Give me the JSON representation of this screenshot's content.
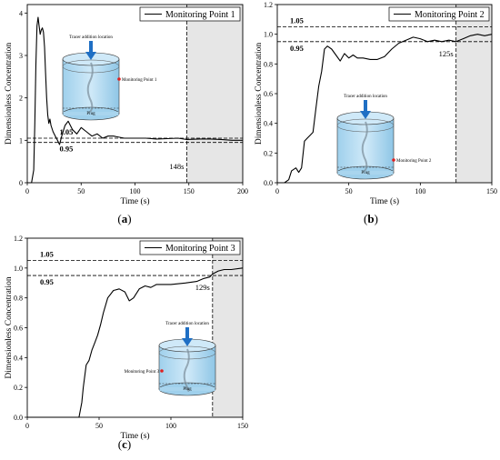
{
  "panels": [
    {
      "caption": "a",
      "chart_data": {
        "type": "line",
        "legend": "Monitoring Point 1",
        "legend_position": "top-right",
        "xlabel": "Time (s)",
        "ylabel": "Dimensionless Concentration",
        "xlim": [
          0,
          200
        ],
        "ylim": [
          0,
          4.2
        ],
        "xticks": [
          0,
          50,
          100,
          150,
          200
        ],
        "yticks": [
          0,
          1,
          2,
          3,
          4
        ],
        "upper_band": 1.05,
        "lower_band": 0.95,
        "upper_label": "1.05",
        "lower_label": "0.95",
        "mixing_time": 148,
        "mixing_label": "148s",
        "shaded_region": [
          148,
          200
        ],
        "x": [
          0,
          4,
          6,
          7,
          8,
          9,
          10,
          11,
          12,
          13,
          14,
          15,
          16,
          17,
          18,
          19,
          20,
          21,
          22,
          24,
          26,
          28,
          30,
          32,
          35,
          38,
          42,
          46,
          50,
          55,
          60,
          65,
          70,
          75,
          80,
          90,
          100,
          110,
          120,
          130,
          140,
          148,
          160,
          170,
          180,
          190,
          200
        ],
        "y": [
          0,
          0,
          0.3,
          1.4,
          2.8,
          3.7,
          3.9,
          3.7,
          3.5,
          3.6,
          3.65,
          3.55,
          3.2,
          2.6,
          2.0,
          1.6,
          1.4,
          1.5,
          1.35,
          1.2,
          1.1,
          1.0,
          0.9,
          1.1,
          1.35,
          1.45,
          1.25,
          1.15,
          1.3,
          1.2,
          1.1,
          1.15,
          1.05,
          1.1,
          1.1,
          1.05,
          1.05,
          1.05,
          1.03,
          1.04,
          1.05,
          1.02,
          1.03,
          1.03,
          1.02,
          1.0,
          1.0
        ]
      },
      "inset": {
        "title": "Tracer addition location",
        "point_label": "Monitoring Point 1",
        "bottom_label": "Plug"
      }
    },
    {
      "caption": "b",
      "chart_data": {
        "type": "line",
        "legend": "Monitoring Point 2",
        "legend_position": "top-right",
        "xlabel": "Time (s)",
        "ylabel": "Dimensionless Concentration",
        "xlim": [
          0,
          150
        ],
        "ylim": [
          0,
          1.2
        ],
        "xticks": [
          0,
          50,
          100,
          150
        ],
        "yticks": [
          0.0,
          0.2,
          0.4,
          0.6,
          0.8,
          1.0,
          1.2
        ],
        "upper_band": 1.05,
        "lower_band": 0.95,
        "upper_label": "1.05",
        "lower_label": "0.95",
        "mixing_time": 125,
        "mixing_label": "125s",
        "shaded_region": [
          125,
          150
        ],
        "x": [
          0,
          5,
          8,
          10,
          13,
          15,
          17,
          19,
          21,
          23,
          25,
          27,
          29,
          31,
          33,
          35,
          38,
          41,
          44,
          47,
          50,
          53,
          56,
          60,
          65,
          70,
          75,
          80,
          85,
          90,
          95,
          100,
          105,
          110,
          115,
          120,
          125,
          130,
          135,
          140,
          145,
          150
        ],
        "y": [
          0,
          0,
          0.02,
          0.08,
          0.1,
          0.07,
          0.1,
          0.28,
          0.3,
          0.32,
          0.34,
          0.5,
          0.65,
          0.75,
          0.9,
          0.92,
          0.9,
          0.86,
          0.82,
          0.87,
          0.84,
          0.86,
          0.84,
          0.84,
          0.83,
          0.83,
          0.85,
          0.9,
          0.94,
          0.96,
          0.98,
          0.97,
          0.95,
          0.96,
          0.95,
          0.96,
          0.95,
          0.97,
          0.99,
          1.0,
          0.99,
          1.0
        ]
      },
      "inset": {
        "title": "Tracer addition location",
        "point_label": "Monitoring Point 2",
        "bottom_label": "Plug"
      }
    },
    {
      "caption": "c",
      "chart_data": {
        "type": "line",
        "legend": "Monitoring Point 3",
        "legend_position": "top-right",
        "xlabel": "Time (s)",
        "ylabel": "Dimensionless Concentration",
        "xlim": [
          0,
          150
        ],
        "ylim": [
          0,
          1.2
        ],
        "xticks": [
          0,
          50,
          100,
          150
        ],
        "yticks": [
          0.0,
          0.2,
          0.4,
          0.6,
          0.8,
          1.0,
          1.2
        ],
        "upper_band": 1.05,
        "lower_band": 0.95,
        "upper_label": "1.05",
        "lower_label": "0.95",
        "mixing_time": 129,
        "mixing_label": "129s",
        "shaded_region": [
          129,
          150
        ],
        "x": [
          0,
          36,
          38,
          39,
          41,
          43,
          45,
          47,
          49,
          51,
          53,
          56,
          60,
          64,
          68,
          71,
          74,
          78,
          82,
          86,
          90,
          100,
          110,
          118,
          123,
          127,
          129,
          133,
          137,
          142,
          150
        ],
        "y": [
          0,
          0,
          0.1,
          0.2,
          0.35,
          0.38,
          0.45,
          0.5,
          0.55,
          0.62,
          0.7,
          0.8,
          0.85,
          0.86,
          0.84,
          0.78,
          0.8,
          0.86,
          0.88,
          0.87,
          0.89,
          0.89,
          0.9,
          0.91,
          0.93,
          0.94,
          0.96,
          0.98,
          0.99,
          0.99,
          1.0
        ]
      },
      "inset": {
        "title": "Tracer addition location",
        "point_label": "Monitoring Point 3",
        "bottom_label": "Plug"
      }
    }
  ]
}
